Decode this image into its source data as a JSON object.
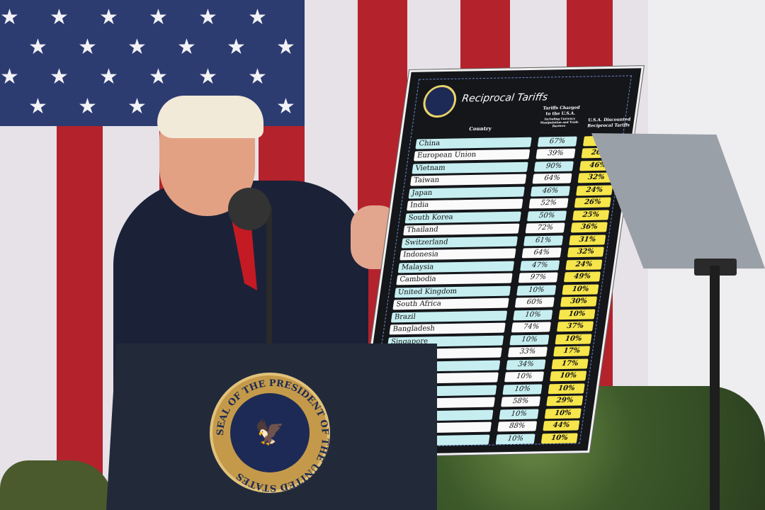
{
  "board": {
    "title": "Reciprocal Tariffs",
    "col_country": "Country",
    "col_charged": "Tariffs Charged to the U.S.A.",
    "col_charged_note": "Including Currency Manipulation and Trade Barriers",
    "col_discounted": "U.S.A. Discounted Reciprocal Tariffs",
    "rows": [
      {
        "country": "China",
        "charged": "67%",
        "discounted": ""
      },
      {
        "country": "European Union",
        "charged": "39%",
        "discounted": "20%"
      },
      {
        "country": "Vietnam",
        "charged": "90%",
        "discounted": "46%"
      },
      {
        "country": "Taiwan",
        "charged": "64%",
        "discounted": "32%"
      },
      {
        "country": "Japan",
        "charged": "46%",
        "discounted": "24%"
      },
      {
        "country": "India",
        "charged": "52%",
        "discounted": "26%"
      },
      {
        "country": "South Korea",
        "charged": "50%",
        "discounted": "25%"
      },
      {
        "country": "Thailand",
        "charged": "72%",
        "discounted": "36%"
      },
      {
        "country": "Switzerland",
        "charged": "61%",
        "discounted": "31%"
      },
      {
        "country": "Indonesia",
        "charged": "64%",
        "discounted": "32%"
      },
      {
        "country": "Malaysia",
        "charged": "47%",
        "discounted": "24%"
      },
      {
        "country": "Cambodia",
        "charged": "97%",
        "discounted": "49%"
      },
      {
        "country": "United Kingdom",
        "charged": "10%",
        "discounted": "10%"
      },
      {
        "country": "South Africa",
        "charged": "60%",
        "discounted": "30%"
      },
      {
        "country": "Brazil",
        "charged": "10%",
        "discounted": "10%"
      },
      {
        "country": "Bangladesh",
        "charged": "74%",
        "discounted": "37%"
      },
      {
        "country": "Singapore",
        "charged": "10%",
        "discounted": "10%"
      },
      {
        "country": "",
        "charged": "33%",
        "discounted": "17%"
      },
      {
        "country": "",
        "charged": "34%",
        "discounted": "17%"
      },
      {
        "country": "",
        "charged": "10%",
        "discounted": "10%"
      },
      {
        "country": "",
        "charged": "10%",
        "discounted": "10%"
      },
      {
        "country": "",
        "charged": "58%",
        "discounted": "29%"
      },
      {
        "country": "",
        "charged": "10%",
        "discounted": "10%"
      },
      {
        "country": "",
        "charged": "88%",
        "discounted": "44%"
      },
      {
        "country": "",
        "charged": "10%",
        "discounted": "10%"
      }
    ]
  },
  "podium": {
    "seal_text": "SEAL OF THE PRESIDENT OF THE UNITED STATES"
  },
  "colors": {
    "flag_red": "#b4222c",
    "flag_blue": "#2c3b70",
    "board_bg": "#14161a",
    "row_cyan": "#c6eef1",
    "discount_yellow": "#f6e54b"
  }
}
